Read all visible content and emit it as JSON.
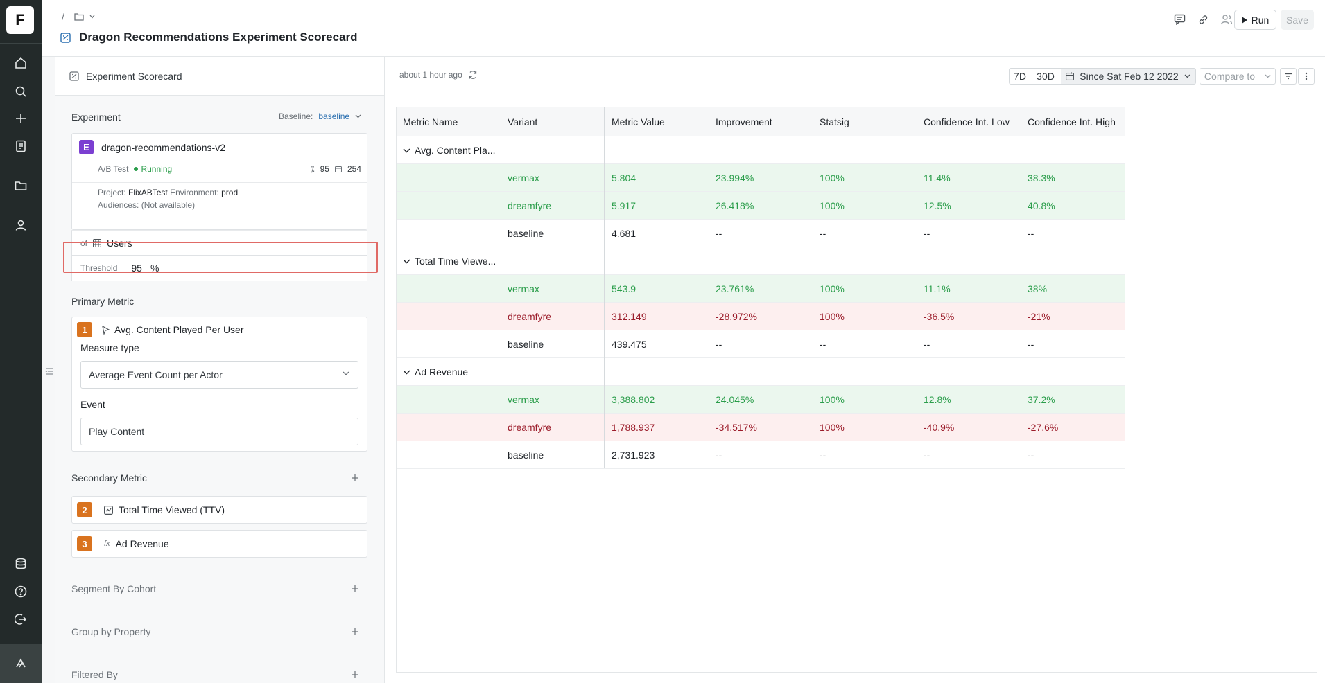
{
  "app": {
    "logo_letter": "F",
    "breadcrumb_sep": "/",
    "title": "Dragon Recommendations Experiment Scorecard"
  },
  "rail_icons": [
    "home-icon",
    "search-icon",
    "plus-icon",
    "notebook-icon",
    "folder-icon",
    "user-icon",
    "database-icon",
    "help-icon",
    "logout-icon",
    "brand-icon"
  ],
  "header_actions": {
    "run_label": "Run",
    "save_label": "Save"
  },
  "panel": {
    "title": "Experiment Scorecard",
    "experiment_label": "Experiment",
    "baseline_label": "Baseline:",
    "baseline_value": "baseline",
    "experiment": {
      "badge": "E",
      "name": "dragon-recommendations-v2",
      "type": "A/B Test",
      "status": "Running",
      "threshold_count": "95",
      "days_count": "254",
      "project_label": "Project:",
      "project_value": "FlixABTest",
      "environment_label": "Environment:",
      "environment_value": "prod",
      "audiences_label": "Audiences:",
      "audiences_value": "(Not available)"
    },
    "of_label": "of",
    "of_value": "Users",
    "threshold_label": "Threshold",
    "threshold_value": "95",
    "threshold_unit": "%",
    "primary_metric_label": "Primary Metric",
    "primary_metric": {
      "badge": "1",
      "name": "Avg. Content Played Per User",
      "measure_type_label": "Measure type",
      "measure_type_value": "Average Event Count per Actor",
      "event_label": "Event",
      "event_value": "Play Content"
    },
    "secondary_metric_label": "Secondary Metric",
    "secondary_metrics": [
      {
        "badge": "2",
        "name": "Total Time Viewed (TTV)"
      },
      {
        "badge": "3",
        "name": "Ad Revenue",
        "prefix": "fx"
      }
    ],
    "segment_label": "Segment By Cohort",
    "group_label": "Group by Property",
    "filter_label": "Filtered By"
  },
  "main": {
    "updated": "about 1 hour ago",
    "ranges": [
      "7D",
      "30D"
    ],
    "since": "Since Sat Feb 12 2022",
    "compare": "Compare to",
    "columns": [
      "Metric Name",
      "Variant",
      "Metric Value",
      "Improvement",
      "Statsig",
      "Confidence Int. Low",
      "Confidence Int. High"
    ],
    "groups": [
      {
        "name": "Avg. Content Pla...",
        "rows": [
          {
            "variant": "vermax",
            "value": "5.804",
            "improvement": "23.994%",
            "statsig": "100%",
            "low": "11.4%",
            "high": "38.3%",
            "tone": "green"
          },
          {
            "variant": "dreamfyre",
            "value": "5.917",
            "improvement": "26.418%",
            "statsig": "100%",
            "low": "12.5%",
            "high": "40.8%",
            "tone": "green"
          },
          {
            "variant": "baseline",
            "value": "4.681",
            "improvement": "--",
            "statsig": "--",
            "low": "--",
            "high": "--",
            "tone": "none"
          }
        ]
      },
      {
        "name": "Total Time Viewe...",
        "rows": [
          {
            "variant": "vermax",
            "value": "543.9",
            "improvement": "23.761%",
            "statsig": "100%",
            "low": "11.1%",
            "high": "38%",
            "tone": "green"
          },
          {
            "variant": "dreamfyre",
            "value": "312.149",
            "improvement": "-28.972%",
            "statsig": "100%",
            "low": "-36.5%",
            "high": "-21%",
            "tone": "red"
          },
          {
            "variant": "baseline",
            "value": "439.475",
            "improvement": "--",
            "statsig": "--",
            "low": "--",
            "high": "--",
            "tone": "none"
          }
        ]
      },
      {
        "name": "Ad Revenue",
        "rows": [
          {
            "variant": "vermax",
            "value": "3,388.802",
            "improvement": "24.045%",
            "statsig": "100%",
            "low": "12.8%",
            "high": "37.2%",
            "tone": "green"
          },
          {
            "variant": "dreamfyre",
            "value": "1,788.937",
            "improvement": "-34.517%",
            "statsig": "100%",
            "low": "-40.9%",
            "high": "-27.6%",
            "tone": "red"
          },
          {
            "variant": "baseline",
            "value": "2,731.923",
            "improvement": "--",
            "statsig": "--",
            "low": "--",
            "high": "--",
            "tone": "none"
          }
        ]
      }
    ]
  },
  "colors": {
    "rail": "#232a2a",
    "positive": "#2a9d4a",
    "negative": "#9b1c2a",
    "positive_bg": "#ebf7ee",
    "negative_bg": "#fdefef",
    "accent": "#7b3fd1",
    "metric_badge": "#d9731f",
    "highlight": "#e06a66"
  }
}
